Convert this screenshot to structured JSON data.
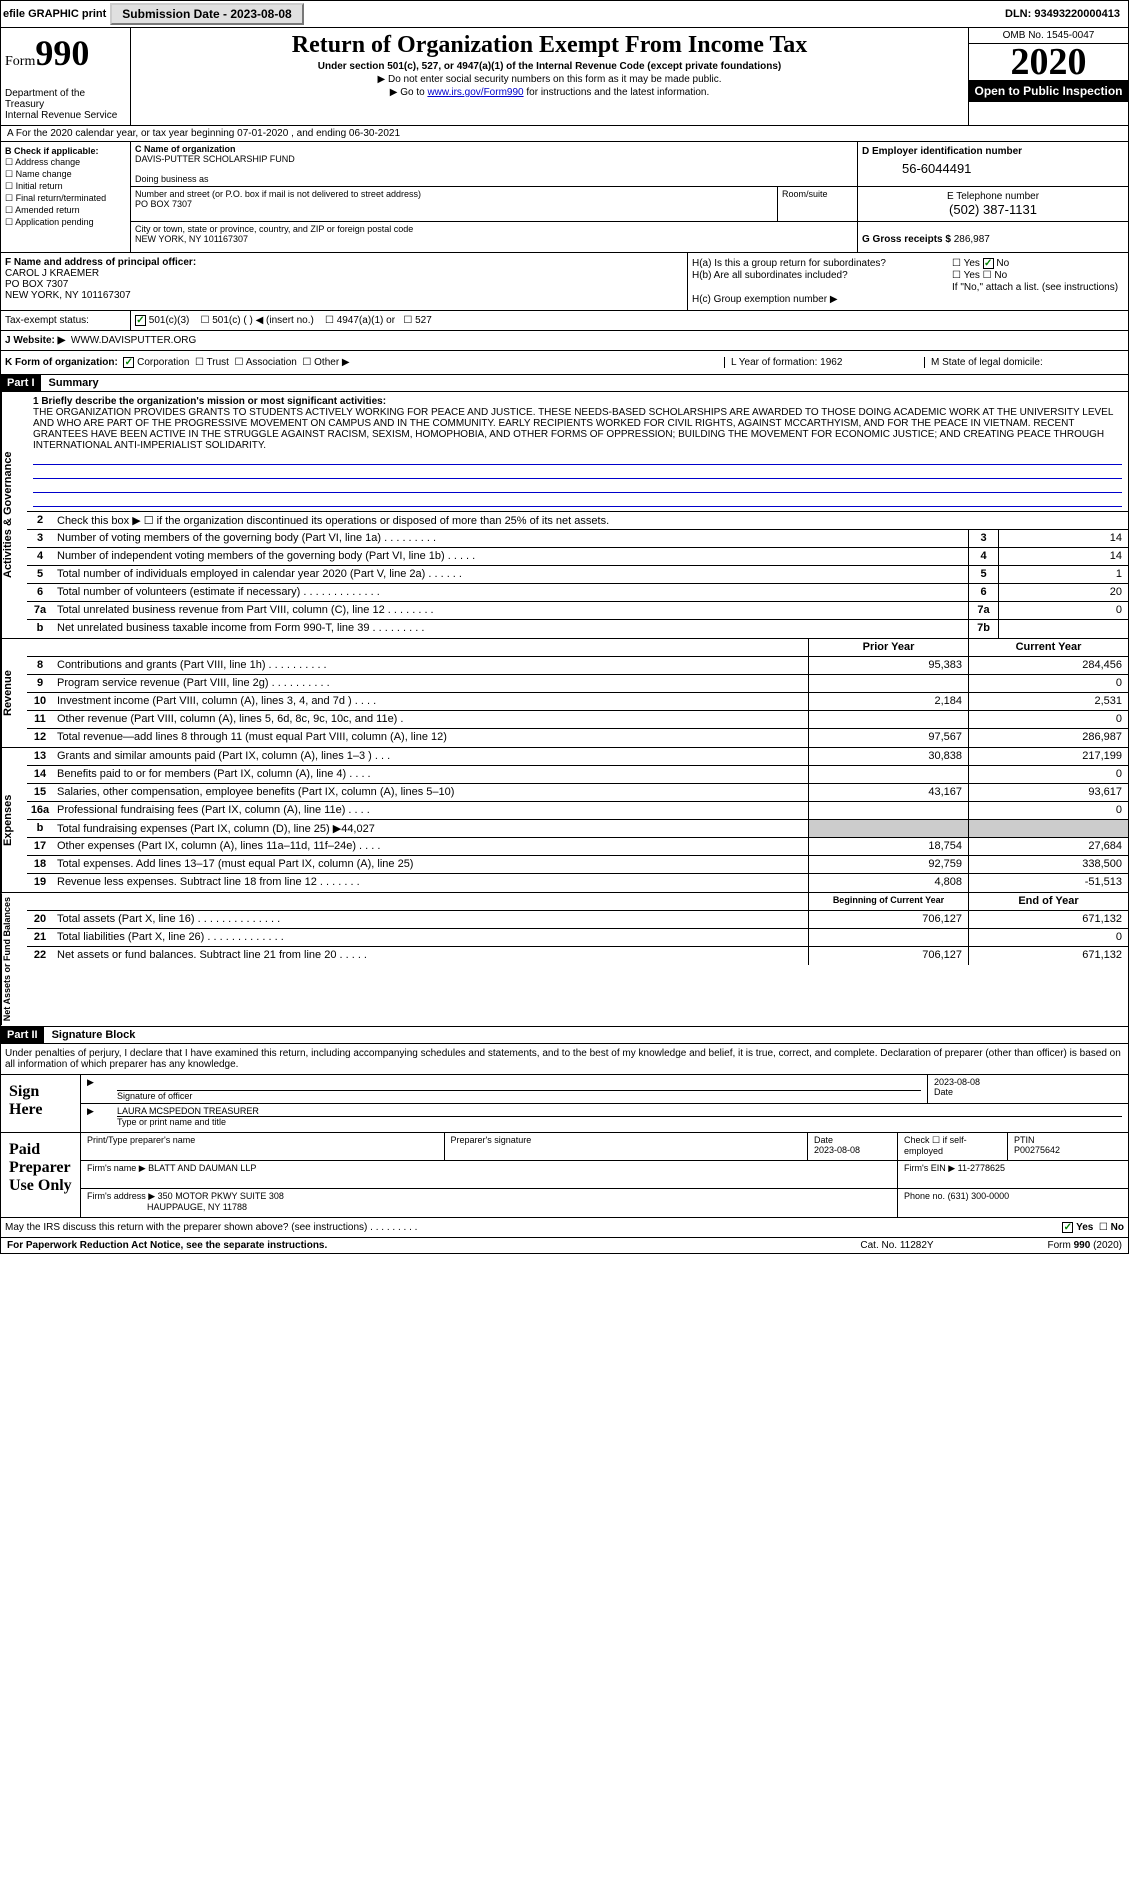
{
  "topbar": {
    "efile": "efile GRAPHIC print",
    "submission_label": "Submission Date - 2023-08-08",
    "dln": "DLN: 93493220000413"
  },
  "header": {
    "form_prefix": "Form",
    "form_no": "990",
    "dept": "Department of the Treasury\nInternal Revenue Service",
    "title": "Return of Organization Exempt From Income Tax",
    "subtitle": "Under section 501(c), 527, or 4947(a)(1) of the Internal Revenue Code (except private foundations)",
    "note1": "▶ Do not enter social security numbers on this form as it may be made public.",
    "note2_pre": "▶ Go to ",
    "note2_link": "www.irs.gov/Form990",
    "note2_post": " for instructions and the latest information.",
    "omb": "OMB No. 1545-0047",
    "year": "2020",
    "inspect": "Open to Public Inspection"
  },
  "period": "A For the 2020 calendar year, or tax year beginning 07-01-2020   , and ending 06-30-2021",
  "box_b": {
    "label": "B Check if applicable:",
    "opts": [
      "Address change",
      "Name change",
      "Initial return",
      "Final return/terminated",
      "Amended return",
      "Application pending"
    ]
  },
  "box_c": {
    "label": "C Name of organization",
    "name": "DAVIS-PUTTER SCHOLARSHIP FUND",
    "dba_label": "Doing business as",
    "addr_label": "Number and street (or P.O. box if mail is not delivered to street address)",
    "addr": "PO BOX 7307",
    "room_label": "Room/suite",
    "city_label": "City or town, state or province, country, and ZIP or foreign postal code",
    "city": "NEW YORK, NY  101167307"
  },
  "box_d": {
    "label": "D Employer identification number",
    "value": "56-6044491"
  },
  "box_e": {
    "label": "E Telephone number",
    "value": "(502) 387-1131"
  },
  "box_g": {
    "label": "G Gross receipts $",
    "value": "286,987"
  },
  "box_f": {
    "label": "F  Name and address of principal officer:",
    "name": "CAROL J KRAEMER",
    "addr1": "PO BOX 7307",
    "addr2": "NEW YORK, NY  101167307"
  },
  "box_h": {
    "ha": "H(a)  Is this a group return for subordinates?",
    "hb": "H(b)  Are all subordinates included?",
    "hnote": "If \"No,\" attach a list. (see instructions)",
    "hc": "H(c)  Group exemption number ▶"
  },
  "tax": {
    "label": "Tax-exempt status:",
    "t1": "501(c)(3)",
    "t2": "501(c) (  )",
    "t2b": "◀ (insert no.)",
    "t3": "4947(a)(1) or",
    "t4": "527"
  },
  "box_j": {
    "label": "J   Website: ▶",
    "value": "WWW.DAVISPUTTER.ORG"
  },
  "box_k": {
    "label": "K Form of organization:",
    "opts": [
      "Corporation",
      "Trust",
      "Association",
      "Other ▶"
    ],
    "l": "L Year of formation: 1962",
    "m": "M State of legal domicile:"
  },
  "part1": {
    "hdr": "Part I",
    "title": "Summary",
    "q1": "1  Briefly describe the organization's mission or most significant activities:",
    "mission": "THE ORGANIZATION PROVIDES GRANTS TO STUDENTS ACTIVELY WORKING FOR PEACE AND JUSTICE. THESE NEEDS-BASED SCHOLARSHIPS ARE AWARDED TO THOSE DOING ACADEMIC WORK AT THE UNIVERSITY LEVEL AND WHO ARE PART OF THE PROGRESSIVE MOVEMENT ON CAMPUS AND IN THE COMMUNITY. EARLY RECIPIENTS WORKED FOR CIVIL RIGHTS, AGAINST MCCARTHYISM, AND FOR THE PEACE IN VIETNAM. RECENT GRANTEES HAVE BEEN ACTIVE IN THE STRUGGLE AGAINST RACISM, SEXISM, HOMOPHOBIA, AND OTHER FORMS OF OPPRESSION; BUILDING THE MOVEMENT FOR ECONOMIC JUSTICE; AND CREATING PEACE THROUGH INTERNATIONAL ANTI-IMPERIALIST SOLIDARITY.",
    "q2": "Check this box ▶ ☐ if the organization discontinued its operations or disposed of more than 25% of its net assets.",
    "gov_rows": [
      {
        "n": "3",
        "d": "Number of voting members of the governing body (Part VI, line 1a)   .   .   .   .   .   .   .   .   .",
        "nc": "3",
        "v": "14"
      },
      {
        "n": "4",
        "d": "Number of independent voting members of the governing body (Part VI, line 1b)   .   .   .   .   .",
        "nc": "4",
        "v": "14"
      },
      {
        "n": "5",
        "d": "Total number of individuals employed in calendar year 2020 (Part V, line 2a)   .   .   .   .   .   .",
        "nc": "5",
        "v": "1"
      },
      {
        "n": "6",
        "d": "Total number of volunteers (estimate if necessary)   .   .   .   .   .   .   .   .   .   .   .   .   .",
        "nc": "6",
        "v": "20"
      },
      {
        "n": "7a",
        "d": "Total unrelated business revenue from Part VIII, column (C), line 12   .   .   .   .   .   .   .   .",
        "nc": "7a",
        "v": "0"
      },
      {
        "n": "b",
        "d": "Net unrelated business taxable income from Form 990-T, line 39   .   .   .   .   .   .   .   .   .",
        "nc": "7b",
        "v": ""
      }
    ],
    "col_prior": "Prior Year",
    "col_curr": "Current Year",
    "rev_rows": [
      {
        "n": "8",
        "d": "Contributions and grants (Part VIII, line 1h)   .   .   .   .   .   .   .   .   .   .",
        "p": "95,383",
        "c": "284,456"
      },
      {
        "n": "9",
        "d": "Program service revenue (Part VIII, line 2g)   .   .   .   .   .   .   .   .   .   .",
        "p": "",
        "c": "0"
      },
      {
        "n": "10",
        "d": "Investment income (Part VIII, column (A), lines 3, 4, and 7d )   .   .   .   .",
        "p": "2,184",
        "c": "2,531"
      },
      {
        "n": "11",
        "d": "Other revenue (Part VIII, column (A), lines 5, 6d, 8c, 9c, 10c, and 11e)   .",
        "p": "",
        "c": "0"
      },
      {
        "n": "12",
        "d": "Total revenue—add lines 8 through 11 (must equal Part VIII, column (A), line 12)",
        "p": "97,567",
        "c": "286,987"
      }
    ],
    "exp_rows": [
      {
        "n": "13",
        "d": "Grants and similar amounts paid (Part IX, column (A), lines 1–3 )   .   .   .",
        "p": "30,838",
        "c": "217,199"
      },
      {
        "n": "14",
        "d": "Benefits paid to or for members (Part IX, column (A), line 4)   .   .   .   .",
        "p": "",
        "c": "0"
      },
      {
        "n": "15",
        "d": "Salaries, other compensation, employee benefits (Part IX, column (A), lines 5–10)",
        "p": "43,167",
        "c": "93,617"
      },
      {
        "n": "16a",
        "d": "Professional fundraising fees (Part IX, column (A), line 11e)   .   .   .   .",
        "p": "",
        "c": "0"
      },
      {
        "n": "b",
        "d": "Total fundraising expenses (Part IX, column (D), line 25) ▶44,027",
        "p": "shade",
        "c": "shade"
      },
      {
        "n": "17",
        "d": "Other expenses (Part IX, column (A), lines 11a–11d, 11f–24e)   .   .   .   .",
        "p": "18,754",
        "c": "27,684"
      },
      {
        "n": "18",
        "d": "Total expenses. Add lines 13–17 (must equal Part IX, column (A), line 25)",
        "p": "92,759",
        "c": "338,500"
      },
      {
        "n": "19",
        "d": "Revenue less expenses. Subtract line 18 from line 12   .   .   .   .   .   .   .",
        "p": "4,808",
        "c": "-51,513"
      }
    ],
    "col_beg": "Beginning of Current Year",
    "col_end": "End of Year",
    "net_rows": [
      {
        "n": "20",
        "d": "Total assets (Part X, line 16)   .   .   .   .   .   .   .   .   .   .   .   .   .   .",
        "p": "706,127",
        "c": "671,132"
      },
      {
        "n": "21",
        "d": "Total liabilities (Part X, line 26)   .   .   .   .   .   .   .   .   .   .   .   .   .",
        "p": "",
        "c": "0"
      },
      {
        "n": "22",
        "d": "Net assets or fund balances. Subtract line 21 from line 20   .   .   .   .   .",
        "p": "706,127",
        "c": "671,132"
      }
    ]
  },
  "part2": {
    "hdr": "Part II",
    "title": "Signature Block",
    "decl": "Under penalties of perjury, I declare that I have examined this return, including accompanying schedules and statements, and to the best of my knowledge and belief, it is true, correct, and complete. Declaration of preparer (other than officer) is based on all information of which preparer has any knowledge."
  },
  "sign": {
    "label": "Sign Here",
    "sig_label": "Signature of officer",
    "date": "2023-08-08",
    "date_label": "Date",
    "name": "LAURA MCSPEDON  TREASURER",
    "name_label": "Type or print name and title"
  },
  "prep": {
    "label": "Paid Preparer Use Only",
    "h1": "Print/Type preparer's name",
    "h2": "Preparer's signature",
    "h3": "Date",
    "date": "2023-08-08",
    "h4": "Check ☐ if self-employed",
    "h5": "PTIN",
    "ptin": "P00275642",
    "firm_label": "Firm's name    ▶",
    "firm": "BLATT AND DAUMAN LLP",
    "ein_label": "Firm's EIN ▶",
    "ein": "11-2778625",
    "addr_label": "Firm's address ▶",
    "addr1": "350 MOTOR PKWY SUITE 308",
    "addr2": "HAUPPAUGE, NY  11788",
    "phone_label": "Phone no.",
    "phone": "(631) 300-0000"
  },
  "discuss": "May the IRS discuss this return with the preparer shown above? (see instructions)   .   .   .   .   .   .   .   .   .",
  "footer": {
    "l": "For Paperwork Reduction Act Notice, see the separate instructions.",
    "m": "Cat. No. 11282Y",
    "r": "Form 990 (2020)"
  }
}
